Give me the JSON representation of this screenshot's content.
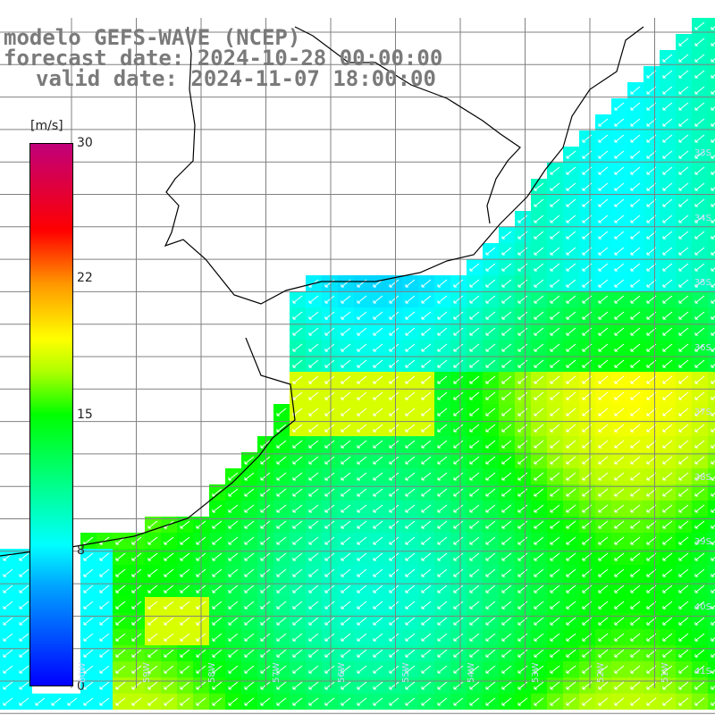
{
  "header": {
    "line1": "modelo GEFS-WAVE (NCEP)",
    "line2": "forecast date: 2024-10-28 00:00:00",
    "line3": "valid date: 2024-11-07 18:00:00"
  },
  "colorbar": {
    "unit": "[m/s]",
    "ticks": [
      "30",
      "22",
      "15",
      "8",
      "0"
    ],
    "range": [
      0,
      30
    ]
  },
  "lat_labels": [
    "33S",
    "34S",
    "35S",
    "36S",
    "37S",
    "38S",
    "39S",
    "40S",
    "41S"
  ],
  "lon_labels": [
    "60W",
    "59W",
    "58W",
    "57W",
    "56W",
    "55W",
    "54W",
    "53W",
    "52W",
    "51W"
  ],
  "colors": {
    "calm": "#0060ff",
    "moderate": "#00ff00",
    "strong": "#b0ff00",
    "land": "#ffffff",
    "grid": "#808080"
  }
}
